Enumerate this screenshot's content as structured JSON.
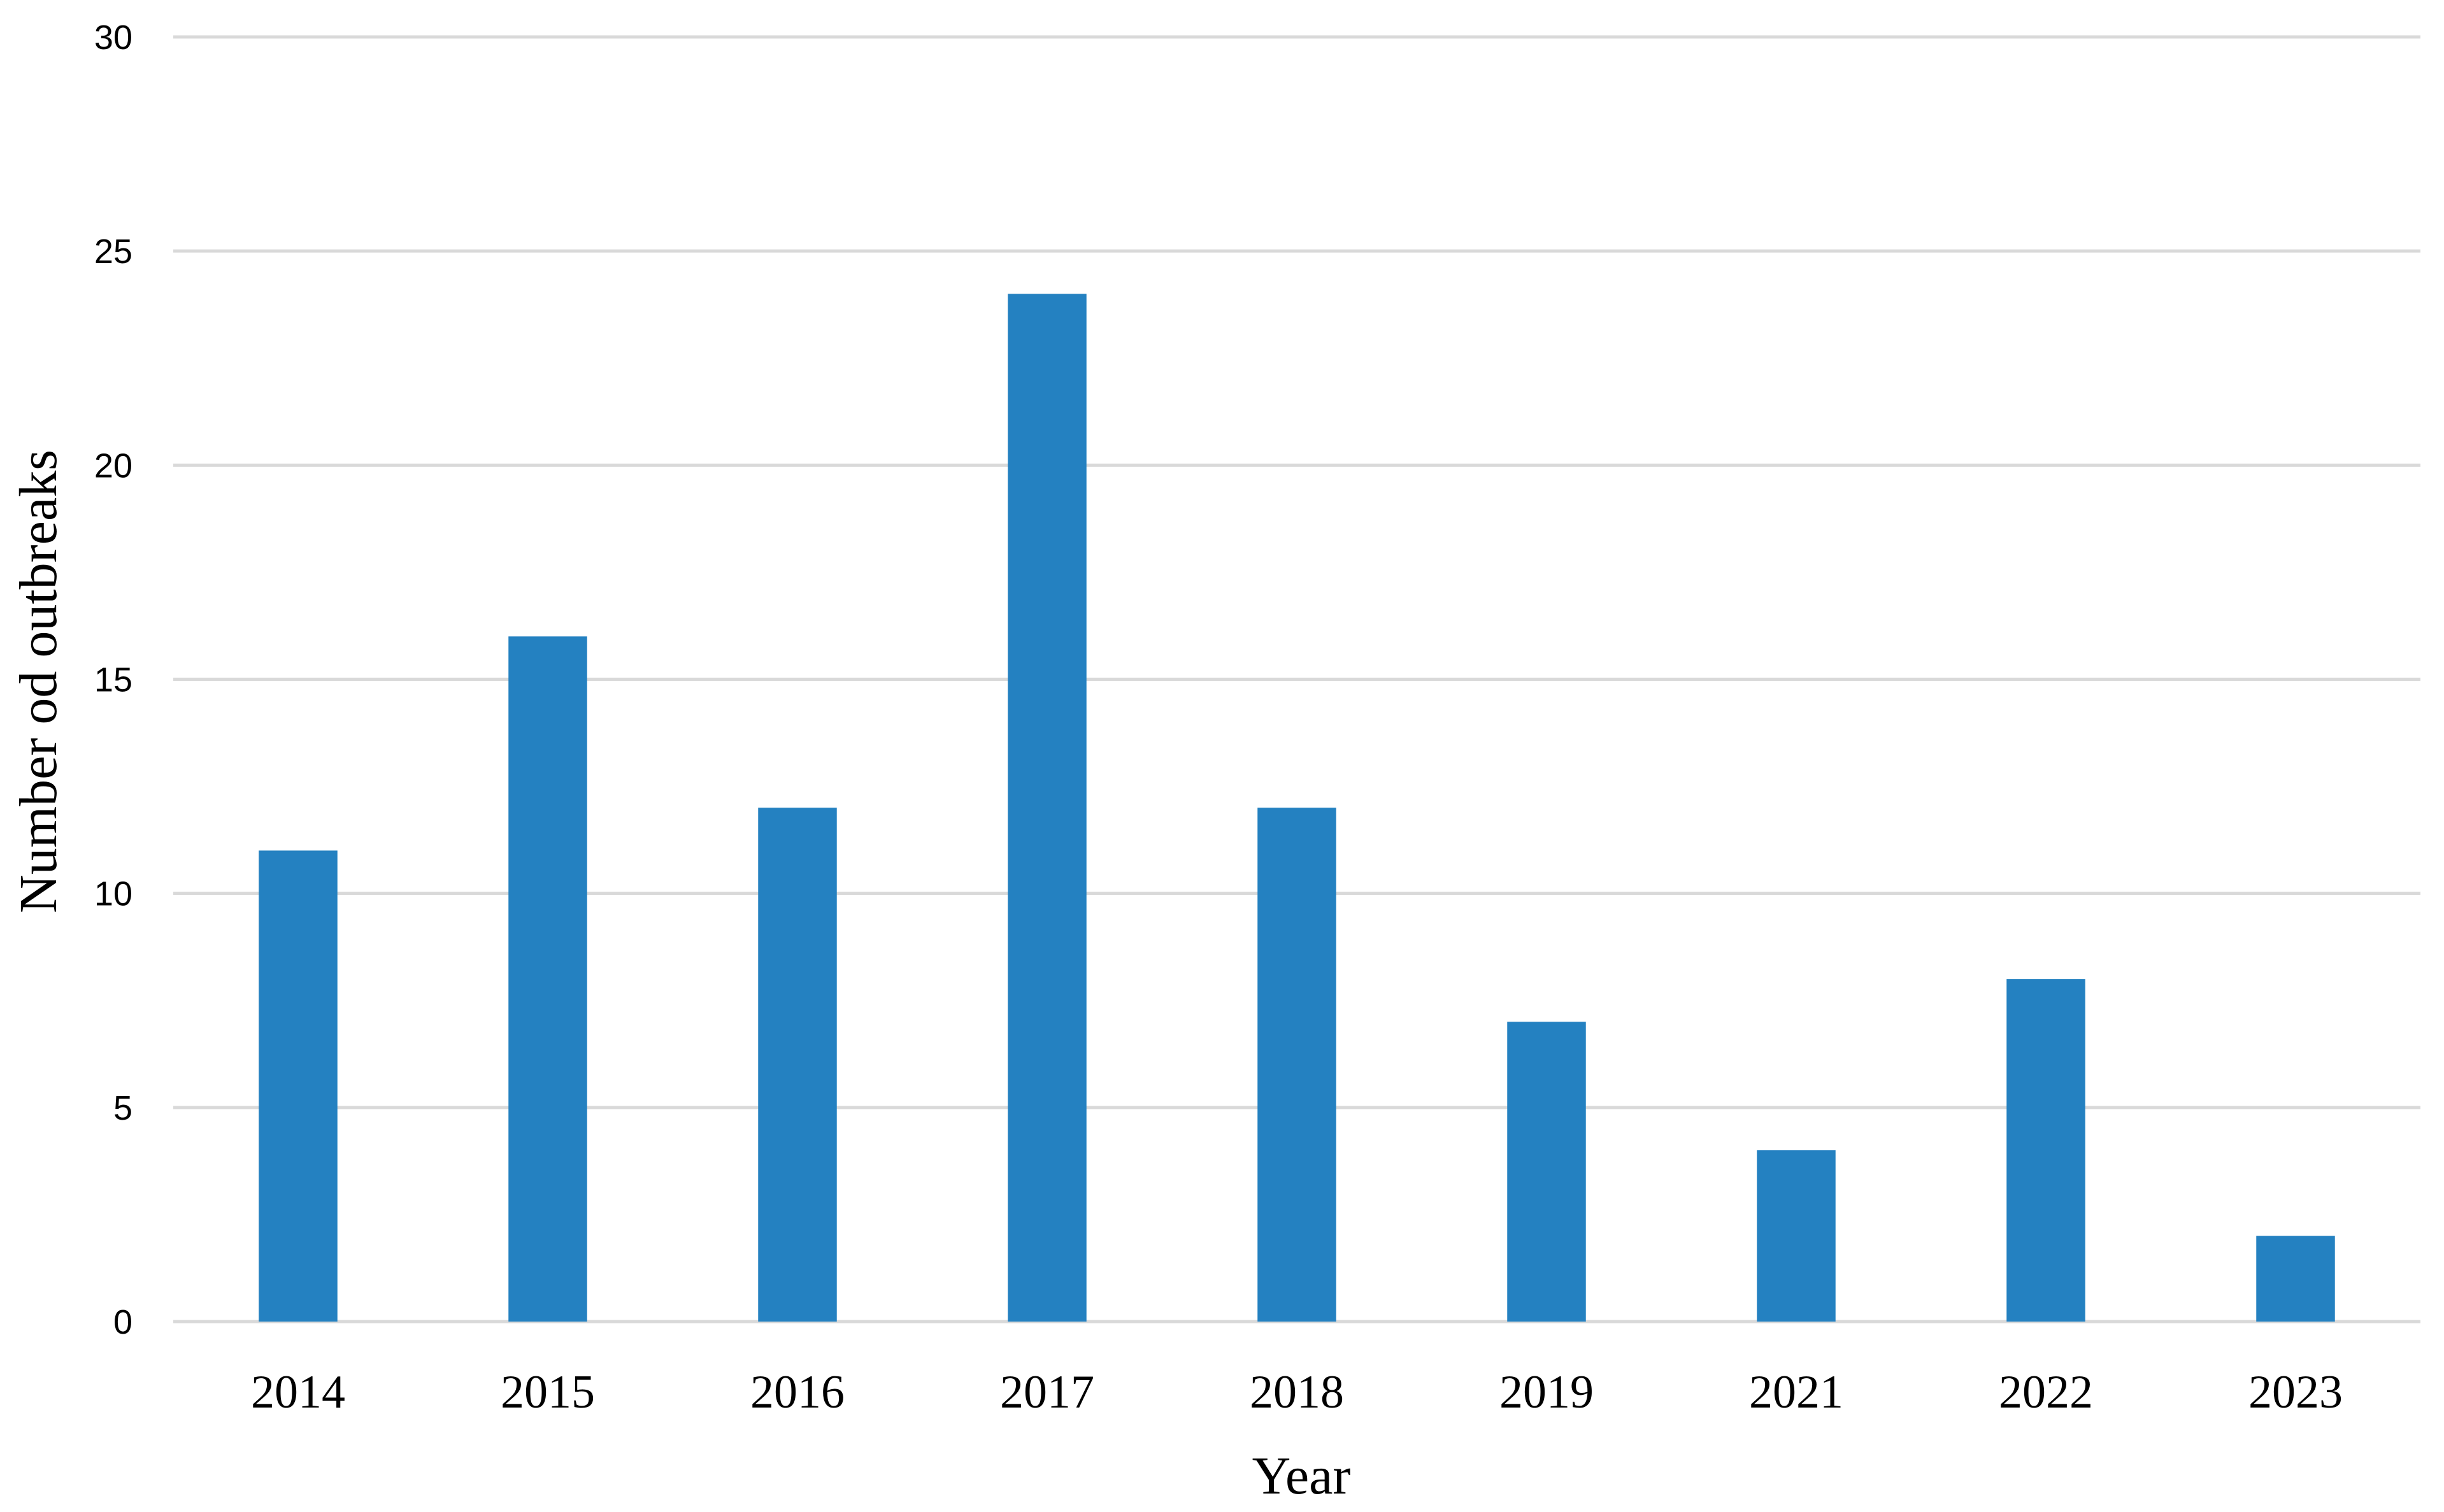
{
  "chart_data": {
    "type": "bar",
    "categories": [
      "2014",
      "2015",
      "2016",
      "2017",
      "2018",
      "2019",
      "2021",
      "2022",
      "2023"
    ],
    "series": [
      {
        "values": [
          11,
          16,
          12,
          24,
          12,
          7,
          4,
          8,
          2
        ],
        "color": "#2481c1"
      }
    ],
    "xlabel": "Year",
    "ylabel": "Number od outbreaks",
    "ylim": [
      0,
      30
    ],
    "yticks": [
      0,
      5,
      10,
      15,
      20,
      25,
      30
    ],
    "grid": true,
    "legend": "none"
  }
}
